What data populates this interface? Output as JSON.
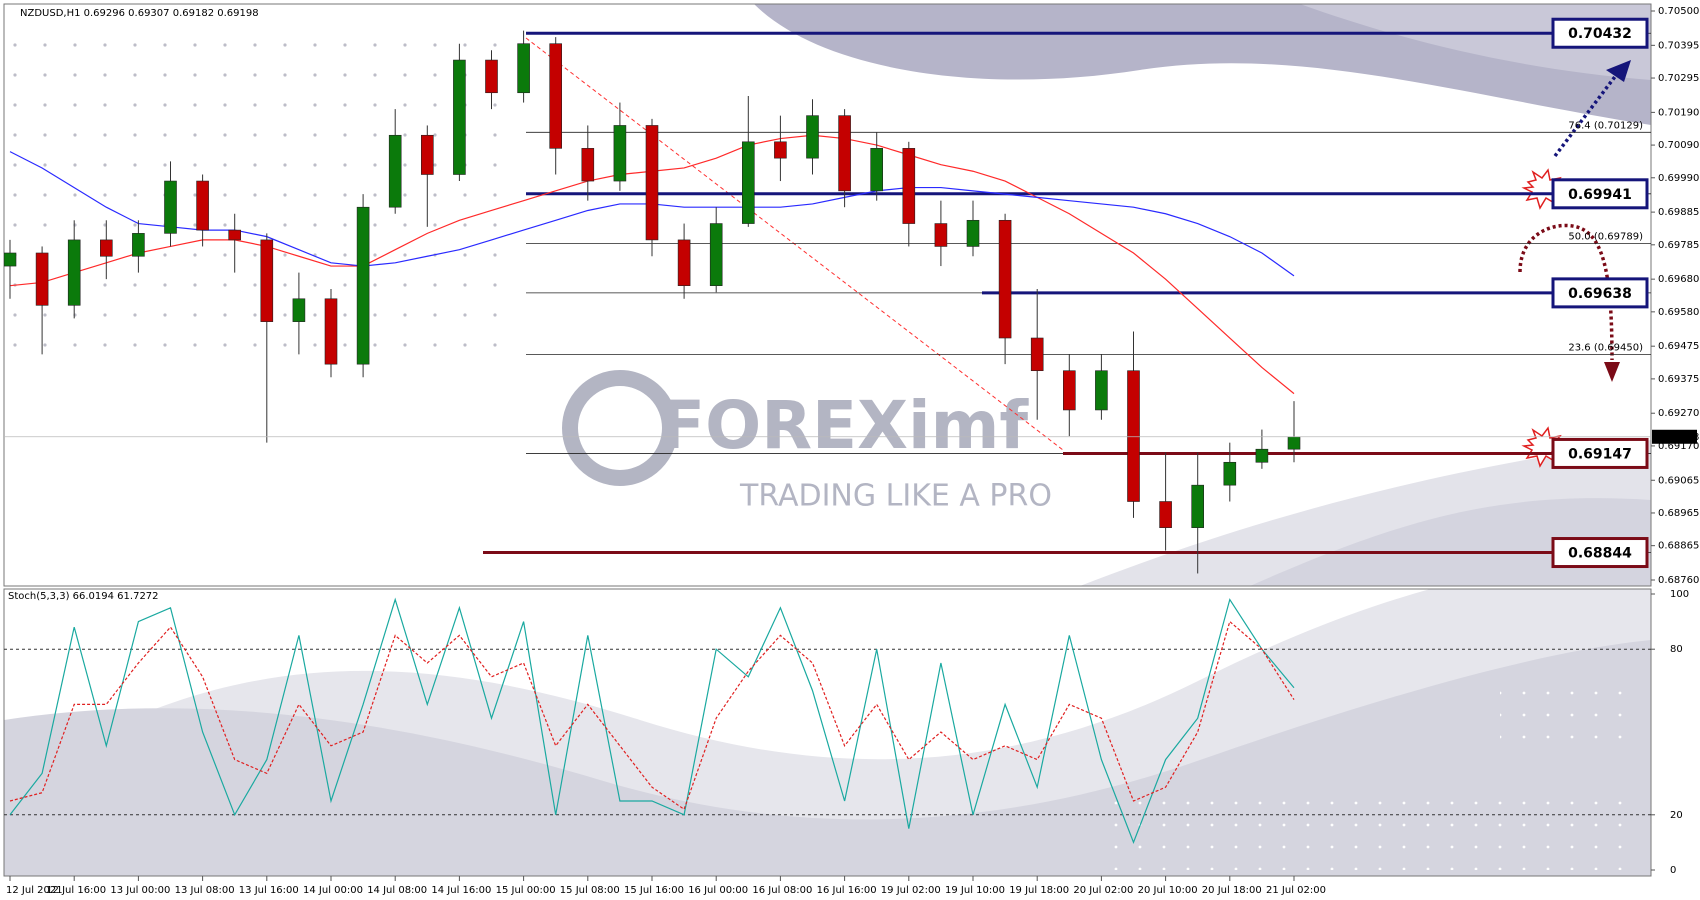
{
  "chart_data": [
    {
      "type": "candlestick",
      "title": "NZDUSD,H1  0.69296 0.69307 0.69182 0.69198",
      "watermark": "FOREXimf",
      "watermark_subtitle": "TRADING LIKE A PRO",
      "categories": [
        "12 Jul 2021",
        null,
        "12 Jul 16:00",
        null,
        "13 Jul 00:00",
        null,
        "13 Jul 08:00",
        null,
        "13 Jul 16:00",
        null,
        "14 Jul 00:00",
        null,
        "14 Jul 08:00",
        null,
        "14 Jul 16:00",
        null,
        "15 Jul 00:00",
        null,
        "15 Jul 08:00",
        null,
        "15 Jul 16:00",
        null,
        "16 Jul 00:00",
        null,
        "16 Jul 08:00",
        null,
        "16 Jul 16:00",
        null,
        "19 Jul 02:00",
        null,
        "19 Jul 10:00",
        null,
        "19 Jul 18:00",
        null,
        "20 Jul 02:00",
        null,
        "20 Jul 10:00",
        null,
        "20 Jul 18:00",
        null,
        "21 Jul 02:00"
      ],
      "open": [
        0.6972,
        0.6976,
        0.696,
        0.698,
        0.6975,
        0.6982,
        0.6998,
        0.6983,
        0.698,
        0.6955,
        0.6962,
        0.6942,
        0.699,
        0.7012,
        0.7,
        0.7035,
        0.7025,
        0.704,
        0.7008,
        0.6998,
        0.7015,
        0.698,
        0.6966,
        0.6985,
        0.701,
        0.7005,
        0.7018,
        0.6995,
        0.7008,
        0.6985,
        0.6978,
        0.6986,
        0.695,
        0.694,
        0.6928,
        0.694,
        0.69,
        0.6892,
        0.6905,
        0.6912,
        0.6916
      ],
      "high": [
        0.698,
        0.6978,
        0.6986,
        0.6986,
        0.6986,
        0.7004,
        0.7,
        0.6988,
        0.6982,
        0.697,
        0.6965,
        0.6994,
        0.702,
        0.7015,
        0.704,
        0.7038,
        0.7044,
        0.7042,
        0.7015,
        0.7022,
        0.7017,
        0.6985,
        0.699,
        0.7024,
        0.7018,
        0.7023,
        0.702,
        0.7013,
        0.701,
        0.6992,
        0.6992,
        0.6988,
        0.6965,
        0.6945,
        0.6945,
        0.6952,
        0.6915,
        0.6915,
        0.6918,
        0.6922,
        0.69307
      ],
      "low": [
        0.6962,
        0.6945,
        0.6956,
        0.6968,
        0.697,
        0.6978,
        0.6978,
        0.697,
        0.6918,
        0.6945,
        0.6938,
        0.6938,
        0.6988,
        0.6984,
        0.6998,
        0.702,
        0.7022,
        0.7,
        0.6992,
        0.6995,
        0.6975,
        0.6962,
        0.6964,
        0.6984,
        0.6998,
        0.7,
        0.699,
        0.6992,
        0.6978,
        0.6972,
        0.6975,
        0.6942,
        0.6925,
        0.692,
        0.6925,
        0.6895,
        0.6885,
        0.6878,
        0.69,
        0.691,
        0.6912
      ],
      "close": [
        0.6976,
        0.696,
        0.698,
        0.6975,
        0.6982,
        0.6998,
        0.6983,
        0.698,
        0.6955,
        0.6962,
        0.6942,
        0.699,
        0.7012,
        0.7,
        0.7035,
        0.7025,
        0.704,
        0.7008,
        0.6998,
        0.7015,
        0.698,
        0.6966,
        0.6985,
        0.701,
        0.7005,
        0.7018,
        0.6995,
        0.7008,
        0.6985,
        0.6978,
        0.6986,
        0.695,
        0.694,
        0.6928,
        0.694,
        0.69,
        0.6892,
        0.6905,
        0.6912,
        0.6916,
        0.69198
      ],
      "up_color": "#0b7a0b",
      "down_color": "#c40000",
      "lines": [
        {
          "color": "#ff2a2a",
          "values": [
            0.6966,
            0.6967,
            0.697,
            0.6973,
            0.6976,
            0.6978,
            0.698,
            0.698,
            0.6978,
            0.6975,
            0.6972,
            0.6972,
            0.6977,
            0.6982,
            0.6986,
            0.6989,
            0.6992,
            0.6995,
            0.6998,
            0.7,
            0.7001,
            0.7002,
            0.7005,
            0.7009,
            0.7011,
            0.7012,
            0.7011,
            0.7009,
            0.7006,
            0.7003,
            0.7001,
            0.6998,
            0.6993,
            0.6988,
            0.6982,
            0.6976,
            0.6968,
            0.6959,
            0.695,
            0.6941,
            0.6933
          ]
        },
        {
          "color": "#2a2aff",
          "values": [
            0.7007,
            0.7002,
            0.6996,
            0.699,
            0.6985,
            0.6984,
            0.6983,
            0.6983,
            0.6981,
            0.6977,
            0.6973,
            0.6972,
            0.6973,
            0.6975,
            0.6977,
            0.698,
            0.6983,
            0.6986,
            0.6989,
            0.6991,
            0.6991,
            0.699,
            0.699,
            0.699,
            0.699,
            0.6991,
            0.6993,
            0.6995,
            0.6996,
            0.6996,
            0.6995,
            0.6994,
            0.6993,
            0.6992,
            0.6991,
            0.699,
            0.6988,
            0.6985,
            0.6981,
            0.6976,
            0.6969
          ]
        }
      ],
      "fib_levels": [
        {
          "label": "76.4 (0.70129)",
          "value": 0.70129
        },
        {
          "label": "50.0 (0.69789)",
          "value": 0.69789
        },
        {
          "label": "23.6 (0.69450)",
          "value": 0.6945
        }
      ],
      "levels": [
        {
          "value": 0.70432,
          "color": "#15157a"
        },
        {
          "value": 0.69941,
          "color": "#15157a"
        },
        {
          "value": 0.69638,
          "color": "#15157a"
        },
        {
          "value": 0.69147,
          "color": "#7b0b17"
        },
        {
          "value": 0.68844,
          "color": "#7b0b17"
        }
      ],
      "ylim": [
        0.6876,
        0.705
      ],
      "yticks": [
        {
          "value": 0.705,
          "label": "0.70500"
        },
        0.70395,
        0.70295,
        {
          "value": 0.7019,
          "label": "0.70190"
        },
        {
          "value": 0.7009,
          "label": "0.70090"
        },
        {
          "value": 0.6999,
          "label": "0.69990"
        },
        0.69885,
        0.69785,
        {
          "value": 0.6968,
          "label": "0.69680"
        },
        {
          "value": 0.6958,
          "label": "0.69580"
        },
        0.69475,
        0.69375,
        {
          "value": 0.6927,
          "label": "0.69270"
        },
        {
          "value": 0.6917,
          "label": "0.69170"
        },
        0.69065,
        0.68965,
        0.68865,
        {
          "value": 0.6876,
          "label": "0.68760"
        }
      ]
    },
    {
      "type": "stochastic",
      "title": "Stoch(5,3,3) 66.0194 61.7272",
      "series": [
        {
          "color": "#1aa9a0",
          "values": [
            20,
            35,
            88,
            45,
            90,
            95,
            50,
            20,
            40,
            85,
            25,
            60,
            98,
            60,
            95,
            55,
            90,
            20,
            85,
            25,
            25,
            20,
            80,
            70,
            95,
            65,
            25,
            80,
            15,
            75,
            20,
            60,
            30,
            85,
            40,
            10,
            40,
            55,
            98,
            80,
            66.0194
          ]
        },
        {
          "color": "#e02020",
          "values": [
            25,
            28,
            60,
            60,
            75,
            88,
            70,
            40,
            35,
            60,
            45,
            50,
            85,
            75,
            85,
            70,
            75,
            45,
            60,
            45,
            30,
            22,
            55,
            72,
            85,
            75,
            45,
            60,
            40,
            50,
            40,
            45,
            40,
            60,
            55,
            25,
            30,
            50,
            90,
            80,
            61.7272
          ]
        }
      ],
      "levels": [
        20,
        80
      ],
      "ylim": [
        0,
        100
      ],
      "yticks": [
        0,
        20,
        80,
        100
      ]
    }
  ]
}
